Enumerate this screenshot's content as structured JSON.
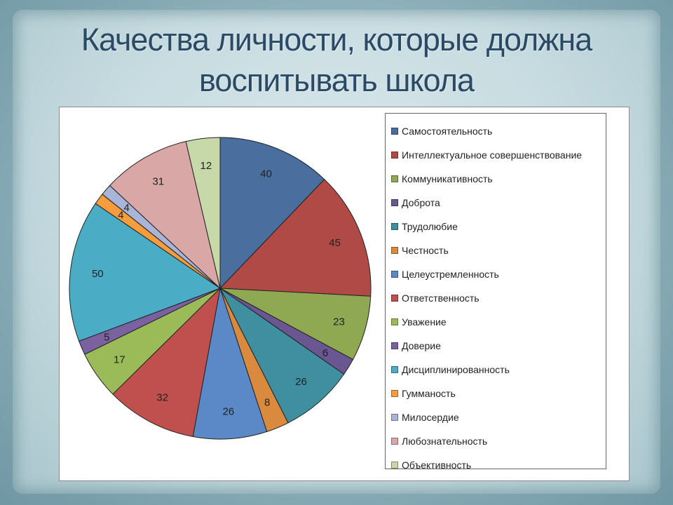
{
  "slide": {
    "title_line1": "Качества личности, которые должна",
    "title_line2": "воспитывать школа"
  },
  "chart_data": {
    "type": "pie",
    "title": "",
    "legend_position": "right",
    "categories": [
      "Самостоятельность",
      "Интеллектуальное совершенствование",
      "Коммуникативность",
      "Доброта",
      "Трудолюбие",
      "Честность",
      "Целеустремленность",
      "Ответственность",
      "Уважение",
      "Доверие",
      "Дисциплинированность",
      "Гумманость",
      "Милосердие",
      "Любознательность",
      "Объективность"
    ],
    "values": [
      40,
      45,
      23,
      6,
      26,
      8,
      26,
      32,
      17,
      5,
      50,
      4,
      4,
      31,
      12
    ],
    "colors": [
      "#4a6e9e",
      "#b04a47",
      "#8fa852",
      "#6a5690",
      "#3f8fa0",
      "#d98a3e",
      "#5b88c6",
      "#c0504d",
      "#9bbb59",
      "#7a62a0",
      "#4bacc6",
      "#f59d3d",
      "#a8b4d8",
      "#d9a7a5",
      "#c7d9a8"
    ]
  }
}
